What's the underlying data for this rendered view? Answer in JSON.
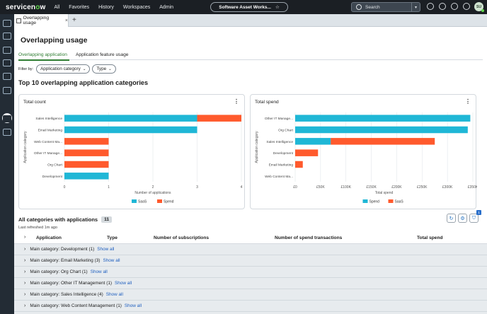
{
  "topbar": {
    "logo_prefix": "servicen",
    "logo_o": "o",
    "logo_suffix": "w",
    "nav": [
      "All",
      "Favorites",
      "History",
      "Workspaces",
      "Admin"
    ],
    "app_pill": "Software Asset Works...",
    "search_placeholder": "Search",
    "avatar_initials": "SU"
  },
  "tab": {
    "label": "Overlapping usage"
  },
  "page": {
    "title": "Overlapping usage",
    "subtabs": [
      "Overlapping application",
      "Application feature usage"
    ],
    "filter_label": "Filter by:",
    "filters": [
      "Application category",
      "Type"
    ],
    "section_title": "Top 10 overlapping application categories"
  },
  "chart_data": [
    {
      "type": "bar",
      "orientation": "horizontal",
      "stacked": true,
      "title": "Total count",
      "categories": [
        "Sales Intelligence",
        "Email Marketing",
        "Web Content Ma...",
        "Other IT Manage...",
        "Org Chart",
        "Development"
      ],
      "series": [
        {
          "name": "SaaS",
          "color": "#1fb7d6",
          "values": [
            3,
            3,
            0,
            0,
            0,
            1
          ]
        },
        {
          "name": "Spend",
          "color": "#ff5a2d",
          "values": [
            1,
            0,
            1,
            1,
            1,
            0
          ]
        }
      ],
      "xlabel": "Number of applications",
      "ylabel": "Application category",
      "xlim": [
        0,
        4
      ],
      "xticks": [
        "0",
        "1",
        "2",
        "3",
        "4"
      ],
      "grid": true,
      "legend": "bottom"
    },
    {
      "type": "bar",
      "orientation": "horizontal",
      "stacked": true,
      "title": "Total spend",
      "categories": [
        "Other IT Manage...",
        "Org Chart",
        "Sales Intelligence",
        "Development",
        "Email Marketing",
        "Web Content Ma..."
      ],
      "series": [
        {
          "name": "Spend",
          "color": "#1fb7d6",
          "values": [
            345000,
            340000,
            70000,
            0,
            0,
            0
          ]
        },
        {
          "name": "SaaS",
          "color": "#ff5a2d",
          "values": [
            0,
            0,
            205000,
            45000,
            15000,
            0
          ]
        }
      ],
      "xlabel": "Total spend",
      "ylabel": "Application category",
      "xlim": [
        0,
        350000
      ],
      "xticks": [
        "£0",
        "£50K",
        "£100K",
        "£150K",
        "£200K",
        "£250K",
        "£300K",
        "£350K"
      ],
      "grid": true,
      "legend": "bottom"
    }
  ],
  "table": {
    "title": "All categories with applications",
    "count": "11",
    "refreshed": "Last refreshed 1m ago",
    "columns": [
      "Application",
      "Type",
      "Number of subscriptions",
      "Number of spend transactions",
      "Total spend"
    ],
    "filter_badge": "1",
    "rows": [
      {
        "label": "Main category: Development (1)",
        "link": "Show all"
      },
      {
        "label": "Main category: Email Marketing (3)",
        "link": "Show all"
      },
      {
        "label": "Main category: Org Chart (1)",
        "link": "Show all"
      },
      {
        "label": "Main category: Other IT Management (1)",
        "link": "Show all"
      },
      {
        "label": "Main category: Sales Intelligence (4)",
        "link": "Show all"
      },
      {
        "label": "Main category: Web Content Management (1)",
        "link": "Show all"
      }
    ]
  }
}
